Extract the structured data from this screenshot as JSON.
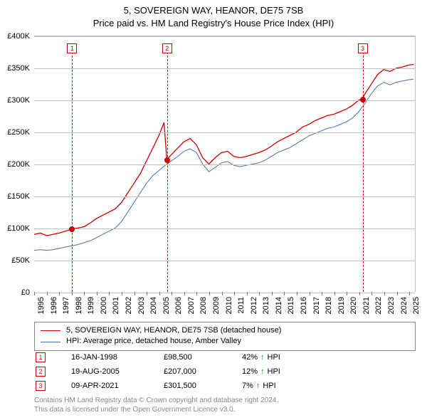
{
  "title": {
    "line1": "5, SOVEREIGN WAY, HEANOR, DE75 7SB",
    "line2": "Price paid vs. HM Land Registry's House Price Index (HPI)"
  },
  "chart": {
    "type": "line",
    "background_color": "#ffffff",
    "grid_color": "#bfbfbf",
    "x_range": [
      1995,
      2025.5
    ],
    "y_range": [
      0,
      400000
    ],
    "y_ticks": [
      {
        "v": 0,
        "label": "£0"
      },
      {
        "v": 50000,
        "label": "£50K"
      },
      {
        "v": 100000,
        "label": "£100K"
      },
      {
        "v": 150000,
        "label": "£150K"
      },
      {
        "v": 200000,
        "label": "£200K"
      },
      {
        "v": 250000,
        "label": "£250K"
      },
      {
        "v": 300000,
        "label": "£300K"
      },
      {
        "v": 350000,
        "label": "£350K"
      },
      {
        "v": 400000,
        "label": "£400K"
      }
    ],
    "x_ticks": [
      1995,
      1996,
      1997,
      1998,
      1999,
      2000,
      2001,
      2002,
      2003,
      2004,
      2005,
      2006,
      2007,
      2008,
      2009,
      2010,
      2011,
      2012,
      2013,
      2014,
      2015,
      2016,
      2017,
      2018,
      2019,
      2020,
      2021,
      2022,
      2023,
      2024,
      2025
    ],
    "label_fontsize": 11,
    "series": [
      {
        "id": "property",
        "label": "5, SOVEREIGN WAY, HEANOR, DE75 7SB (detached house)",
        "color": "#cc0000",
        "line_width": 1.3,
        "data": [
          [
            1995.0,
            90000
          ],
          [
            1995.5,
            92000
          ],
          [
            1996.0,
            88000
          ],
          [
            1996.5,
            90000
          ],
          [
            1997.0,
            92000
          ],
          [
            1997.5,
            95000
          ],
          [
            1998.04,
            98500
          ],
          [
            1998.5,
            100000
          ],
          [
            1999.0,
            102000
          ],
          [
            1999.5,
            108000
          ],
          [
            2000.0,
            115000
          ],
          [
            2000.5,
            120000
          ],
          [
            2001.0,
            125000
          ],
          [
            2001.5,
            130000
          ],
          [
            2002.0,
            140000
          ],
          [
            2002.5,
            155000
          ],
          [
            2003.0,
            170000
          ],
          [
            2003.5,
            185000
          ],
          [
            2004.0,
            205000
          ],
          [
            2004.5,
            225000
          ],
          [
            2005.0,
            245000
          ],
          [
            2005.4,
            265000
          ],
          [
            2005.63,
            207000
          ],
          [
            2006.0,
            215000
          ],
          [
            2006.5,
            225000
          ],
          [
            2007.0,
            235000
          ],
          [
            2007.5,
            240000
          ],
          [
            2008.0,
            230000
          ],
          [
            2008.5,
            210000
          ],
          [
            2009.0,
            200000
          ],
          [
            2009.5,
            210000
          ],
          [
            2010.0,
            218000
          ],
          [
            2010.5,
            220000
          ],
          [
            2011.0,
            212000
          ],
          [
            2011.5,
            210000
          ],
          [
            2012.0,
            212000
          ],
          [
            2012.5,
            215000
          ],
          [
            2013.0,
            218000
          ],
          [
            2013.5,
            222000
          ],
          [
            2014.0,
            228000
          ],
          [
            2014.5,
            235000
          ],
          [
            2015.0,
            240000
          ],
          [
            2015.5,
            245000
          ],
          [
            2016.0,
            250000
          ],
          [
            2016.5,
            258000
          ],
          [
            2017.0,
            262000
          ],
          [
            2017.5,
            268000
          ],
          [
            2018.0,
            272000
          ],
          [
            2018.5,
            276000
          ],
          [
            2019.0,
            278000
          ],
          [
            2019.5,
            282000
          ],
          [
            2020.0,
            286000
          ],
          [
            2020.5,
            292000
          ],
          [
            2021.0,
            300000
          ],
          [
            2021.27,
            301500
          ],
          [
            2021.5,
            310000
          ],
          [
            2022.0,
            325000
          ],
          [
            2022.5,
            340000
          ],
          [
            2023.0,
            348000
          ],
          [
            2023.5,
            345000
          ],
          [
            2024.0,
            350000
          ],
          [
            2024.5,
            352000
          ],
          [
            2025.0,
            355000
          ],
          [
            2025.4,
            356000
          ]
        ]
      },
      {
        "id": "hpi",
        "label": "HPI: Average price, detached house, Amber Valley",
        "color": "#4a6fa5",
        "line_width": 1.0,
        "data": [
          [
            1995.0,
            65000
          ],
          [
            1995.5,
            66000
          ],
          [
            1996.0,
            65000
          ],
          [
            1996.5,
            66000
          ],
          [
            1997.0,
            68000
          ],
          [
            1997.5,
            70000
          ],
          [
            1998.0,
            72000
          ],
          [
            1998.5,
            74000
          ],
          [
            1999.0,
            77000
          ],
          [
            1999.5,
            80000
          ],
          [
            2000.0,
            85000
          ],
          [
            2000.5,
            90000
          ],
          [
            2001.0,
            95000
          ],
          [
            2001.5,
            100000
          ],
          [
            2002.0,
            110000
          ],
          [
            2002.5,
            125000
          ],
          [
            2003.0,
            140000
          ],
          [
            2003.5,
            155000
          ],
          [
            2004.0,
            170000
          ],
          [
            2004.5,
            182000
          ],
          [
            2005.0,
            190000
          ],
          [
            2005.5,
            198000
          ],
          [
            2006.0,
            205000
          ],
          [
            2006.5,
            212000
          ],
          [
            2007.0,
            220000
          ],
          [
            2007.5,
            224000
          ],
          [
            2008.0,
            218000
          ],
          [
            2008.5,
            200000
          ],
          [
            2009.0,
            188000
          ],
          [
            2009.5,
            195000
          ],
          [
            2010.0,
            202000
          ],
          [
            2010.5,
            204000
          ],
          [
            2011.0,
            198000
          ],
          [
            2011.5,
            196000
          ],
          [
            2012.0,
            198000
          ],
          [
            2012.5,
            200000
          ],
          [
            2013.0,
            202000
          ],
          [
            2013.5,
            206000
          ],
          [
            2014.0,
            212000
          ],
          [
            2014.5,
            218000
          ],
          [
            2015.0,
            222000
          ],
          [
            2015.5,
            226000
          ],
          [
            2016.0,
            232000
          ],
          [
            2016.5,
            238000
          ],
          [
            2017.0,
            244000
          ],
          [
            2017.5,
            248000
          ],
          [
            2018.0,
            252000
          ],
          [
            2018.5,
            256000
          ],
          [
            2019.0,
            258000
          ],
          [
            2019.5,
            262000
          ],
          [
            2020.0,
            266000
          ],
          [
            2020.5,
            272000
          ],
          [
            2021.0,
            282000
          ],
          [
            2021.5,
            295000
          ],
          [
            2022.0,
            310000
          ],
          [
            2022.5,
            322000
          ],
          [
            2023.0,
            328000
          ],
          [
            2023.5,
            324000
          ],
          [
            2024.0,
            328000
          ],
          [
            2024.5,
            330000
          ],
          [
            2025.0,
            332000
          ],
          [
            2025.4,
            333000
          ]
        ]
      }
    ],
    "markers": [
      {
        "idx": "1",
        "x": 1998.04,
        "y": 98500
      },
      {
        "idx": "2",
        "x": 2005.63,
        "y": 207000
      },
      {
        "idx": "3",
        "x": 2021.27,
        "y": 301500
      }
    ]
  },
  "legend": {
    "items": [
      {
        "color": "#cc0000",
        "label_path": "chart.series.0.label"
      },
      {
        "color": "#4a6fa5",
        "label_path": "chart.series.1.label"
      }
    ]
  },
  "sales": [
    {
      "idx": "1",
      "date": "16-JAN-1998",
      "price": "£98,500",
      "pct": "42%",
      "suffix": "HPI",
      "arrow_color": "#009900"
    },
    {
      "idx": "2",
      "date": "19-AUG-2005",
      "price": "£207,000",
      "pct": "12%",
      "suffix": "HPI",
      "arrow_color": "#009900"
    },
    {
      "idx": "3",
      "date": "09-APR-2021",
      "price": "£301,500",
      "pct": "7%",
      "suffix": "HPI",
      "arrow_color": "#009900"
    }
  ],
  "attribution": {
    "line1": "Contains HM Land Registry data © Crown copyright and database right 2024.",
    "line2": "This data is licensed under the Open Government Licence v3.0."
  }
}
